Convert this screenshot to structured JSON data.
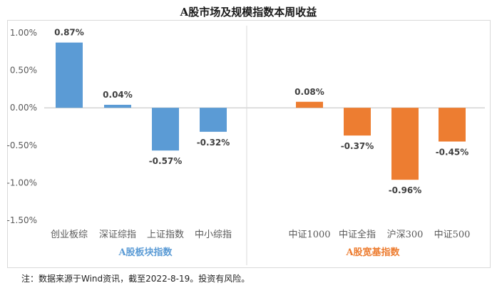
{
  "chart_data": {
    "type": "bar",
    "title": "A股市场及规模指数本周收益",
    "ylim": [
      -1.5,
      1.0
    ],
    "y_ticks": [
      "1.00%",
      "0.50%",
      "0.00%",
      "-0.50%",
      "-1.00%",
      "-1.50%"
    ],
    "y_tick_values": [
      1.0,
      0.5,
      0.0,
      -0.5,
      -1.0,
      -1.5
    ],
    "grid": false,
    "groups": [
      {
        "name": "A股板块指数",
        "color": "#5b9bd5",
        "categories": [
          "创业板综",
          "深证综指",
          "上证指数",
          "中小综指"
        ],
        "values": [
          0.87,
          0.04,
          -0.57,
          -0.32
        ],
        "labels": [
          "0.87%",
          "0.04%",
          "-0.57%",
          "-0.32%"
        ]
      },
      {
        "name": "A股宽基指数",
        "color": "#ed7d31",
        "categories": [
          "中证1000",
          "中证全指",
          "沪深300",
          "中证500"
        ],
        "values": [
          0.08,
          -0.37,
          -0.96,
          -0.45
        ],
        "labels": [
          "0.08%",
          "-0.37%",
          "-0.96%",
          "-0.45%"
        ]
      }
    ]
  },
  "note": "注：数据来源于Wind资讯，截至2022-8-19。投资有风险。"
}
